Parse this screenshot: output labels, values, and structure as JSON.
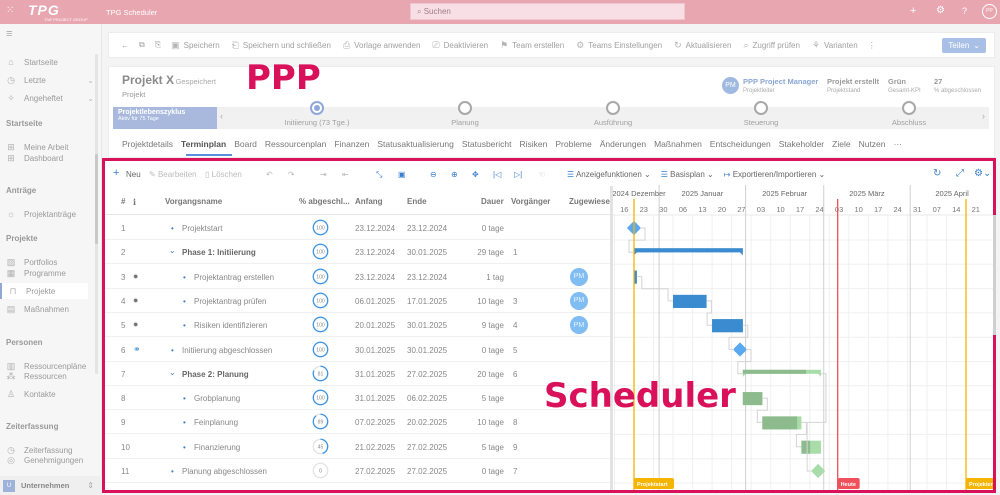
{
  "topbar": {
    "logo": "TPG",
    "logo_sub": "THE PROJECT GROUP",
    "app_title": "TPG Scheduler",
    "search_placeholder": "Suchen",
    "user_initials": "PP"
  },
  "sidebar": {
    "items": [
      {
        "label": "Startseite",
        "icon": "home-icon",
        "y": 34
      },
      {
        "label": "Letzte",
        "icon": "clock-icon",
        "y": 52,
        "chevron": true
      },
      {
        "label": "Angeheftet",
        "icon": "pin-icon",
        "y": 70,
        "chevron": true
      },
      {
        "label": "Meine Arbeit",
        "icon": "grid-icon",
        "y": 111
      },
      {
        "label": "Dashboard",
        "icon": "grid-icon",
        "y": 130
      },
      {
        "label": "Projektanträge",
        "icon": "bulb-icon",
        "y": 178
      },
      {
        "label": "Portfolios",
        "icon": "portfolio-icon",
        "y": 226
      },
      {
        "label": "Programme",
        "icon": "program-icon",
        "y": 245
      },
      {
        "label": "Projekte",
        "icon": "project-icon",
        "y": 263,
        "active": true
      },
      {
        "label": "Maßnahmen",
        "icon": "measure-icon",
        "y": 281
      },
      {
        "label": "Ressourcenpläne",
        "icon": "resource-plan-icon",
        "y": 330
      },
      {
        "label": "Ressourcen",
        "icon": "resources-icon",
        "y": 348
      },
      {
        "label": "Kontakte",
        "icon": "contact-icon",
        "y": 366
      },
      {
        "label": "Zeiterfassung",
        "icon": "clock-icon",
        "y": 414
      },
      {
        "label": "Genehmigungen",
        "icon": "check-circle-icon",
        "y": 432
      }
    ],
    "sections": [
      {
        "label": "Startseite",
        "y": 111
      },
      {
        "label": "Anträge",
        "y": 178
      },
      {
        "label": "Projekte",
        "y": 226
      },
      {
        "label": "Personen",
        "y": 330
      },
      {
        "label": "Zeiterfassung",
        "y": 414
      }
    ],
    "footer": {
      "badge": "U",
      "label": "Unternehmen"
    }
  },
  "commandbar": [
    "Speichern",
    "Speichern und schließen",
    "Vorlage anwenden",
    "Deaktivieren",
    "Team erstellen",
    "Teams Einstellungen",
    "Aktualisieren",
    "Zugriff prüfen",
    "Varianten"
  ],
  "share_label": "Teilen",
  "project": {
    "name": "Projekt X",
    "saved": "- Gespeichert",
    "type": "Projekt",
    "manager_initials": "PM",
    "manager": "PPP Project Manager",
    "manager_role": "Projektleiter",
    "state": "Projekt erstellt",
    "state_label": "Projektstand",
    "kpi": "Grün",
    "kpi_label": "Gesamt-KPI",
    "percent": "27",
    "percent_label": "% abgeschlossen"
  },
  "lifecycle": {
    "title": "Projektlebenszyklus",
    "subtitle": "Aktiv für 75 Tage",
    "stages": [
      {
        "label": "Initiierung  (73 Tge.)",
        "active": true
      },
      {
        "label": "Planung"
      },
      {
        "label": "Ausführung"
      },
      {
        "label": "Steuerung"
      },
      {
        "label": "Abschluss"
      }
    ]
  },
  "tabs": [
    "Projektdetails",
    "Terminplan",
    "Board",
    "Ressourcenplan",
    "Finanzen",
    "Statusaktualisierung",
    "Statusbericht",
    "Risiken",
    "Probleme",
    "Änderungen",
    "Maßnahmen",
    "Entscheidungen",
    "Stakeholder",
    "Ziele",
    "Nutzen",
    "···"
  ],
  "active_tab": "Terminplan",
  "annotations": {
    "top": "PPP",
    "bottom": "Scheduler"
  },
  "scheduler": {
    "toolbar": {
      "new": "Neu",
      "edit": "Bearbeiten",
      "delete": "Löschen",
      "display": "Anzeigefunktionen",
      "baseline": "Basisplan",
      "export": "Exportieren/Importieren"
    },
    "columns": {
      "num": "#",
      "info": "i",
      "name": "Vorgangsname",
      "percent": "% abgeschl...",
      "start": "Anfang",
      "end": "Ende",
      "duration": "Dauer",
      "pred": "Vorgänger",
      "assigned": "Zugewiesen"
    },
    "tasks": [
      {
        "id": "1",
        "name": "Projektstart",
        "level": 1,
        "percent": 100,
        "start": "23.12.2024",
        "end": "23.12.2024",
        "duration": "0 tage",
        "pred": "",
        "milestone": true
      },
      {
        "id": "2",
        "name": "Phase 1: Initiierung",
        "level": 0,
        "summary": true,
        "percent": 100,
        "start": "23.12.2024",
        "end": "30.01.2025",
        "duration": "29 tage",
        "pred": "1"
      },
      {
        "id": "3",
        "name": "Projektantrag erstellen",
        "level": 2,
        "percent": 100,
        "start": "23.12.2024",
        "end": "23.12.2024",
        "duration": "1 tag",
        "pred": "",
        "assigned": "PM",
        "icon": "person-icon"
      },
      {
        "id": "4",
        "name": "Projektantrag prüfen",
        "level": 2,
        "percent": 100,
        "start": "06.01.2025",
        "end": "17.01.2025",
        "duration": "10 tage",
        "pred": "3",
        "assigned": "PM",
        "icon": "person-icon"
      },
      {
        "id": "5",
        "name": "Risiken identifizieren",
        "level": 2,
        "percent": 100,
        "start": "20.01.2025",
        "end": "30.01.2025",
        "duration": "9 tage",
        "pred": "4",
        "assigned": "PM",
        "icon": "person-icon"
      },
      {
        "id": "6",
        "name": "Initiierung abgeschlossen",
        "level": 1,
        "percent": 100,
        "start": "30.01.2025",
        "end": "30.01.2025",
        "duration": "0 tage",
        "pred": "5",
        "milestone": true,
        "icon": "handshake-icon"
      },
      {
        "id": "7",
        "name": "Phase 2: Planung",
        "level": 0,
        "summary": true,
        "percent": 81,
        "start": "31.01.2025",
        "end": "27.02.2025",
        "duration": "20 tage",
        "pred": "6"
      },
      {
        "id": "8",
        "name": "Grobplanung",
        "level": 2,
        "percent": 100,
        "start": "31.01.2025",
        "end": "06.02.2025",
        "duration": "5 tage",
        "pred": ""
      },
      {
        "id": "9",
        "name": "Feinplanung",
        "level": 2,
        "percent": 89,
        "start": "07.02.2025",
        "end": "20.02.2025",
        "duration": "10 tage",
        "pred": "8"
      },
      {
        "id": "10",
        "name": "Finanzierung",
        "level": 2,
        "percent": 45,
        "start": "21.02.2025",
        "end": "27.02.2025",
        "duration": "5 tage",
        "pred": "9"
      },
      {
        "id": "11",
        "name": "Planung abgeschlossen",
        "level": 1,
        "percent": 0,
        "start": "27.02.2025",
        "end": "27.02.2025",
        "duration": "0 tage",
        "pred": "7",
        "milestone": true
      }
    ],
    "timeline": {
      "months": [
        "2024 Dezember",
        "2025 Januar",
        "2025 Februar",
        "2025 März",
        "2025 April"
      ],
      "weeks": [
        "16",
        "23",
        "30",
        "06",
        "13",
        "20",
        "27",
        "03",
        "10",
        "17",
        "24",
        "03",
        "10",
        "17",
        "24",
        "31",
        "07",
        "14",
        "21"
      ],
      "markers": [
        {
          "label": "Projektstart",
          "date": "23.12.2024",
          "color": "#f5b400"
        },
        {
          "label": "Heute",
          "date": "06.03.2025",
          "color": "#f0505a"
        },
        {
          "label": "Projektende",
          "date": "21.04.2025",
          "color": "#f5b400"
        }
      ]
    },
    "colors": {
      "phase1": "#3a8bd0",
      "phase2_done": "#8dbb8d",
      "phase2_todo": "#a8dca8",
      "ring": "#3a93e6"
    }
  }
}
